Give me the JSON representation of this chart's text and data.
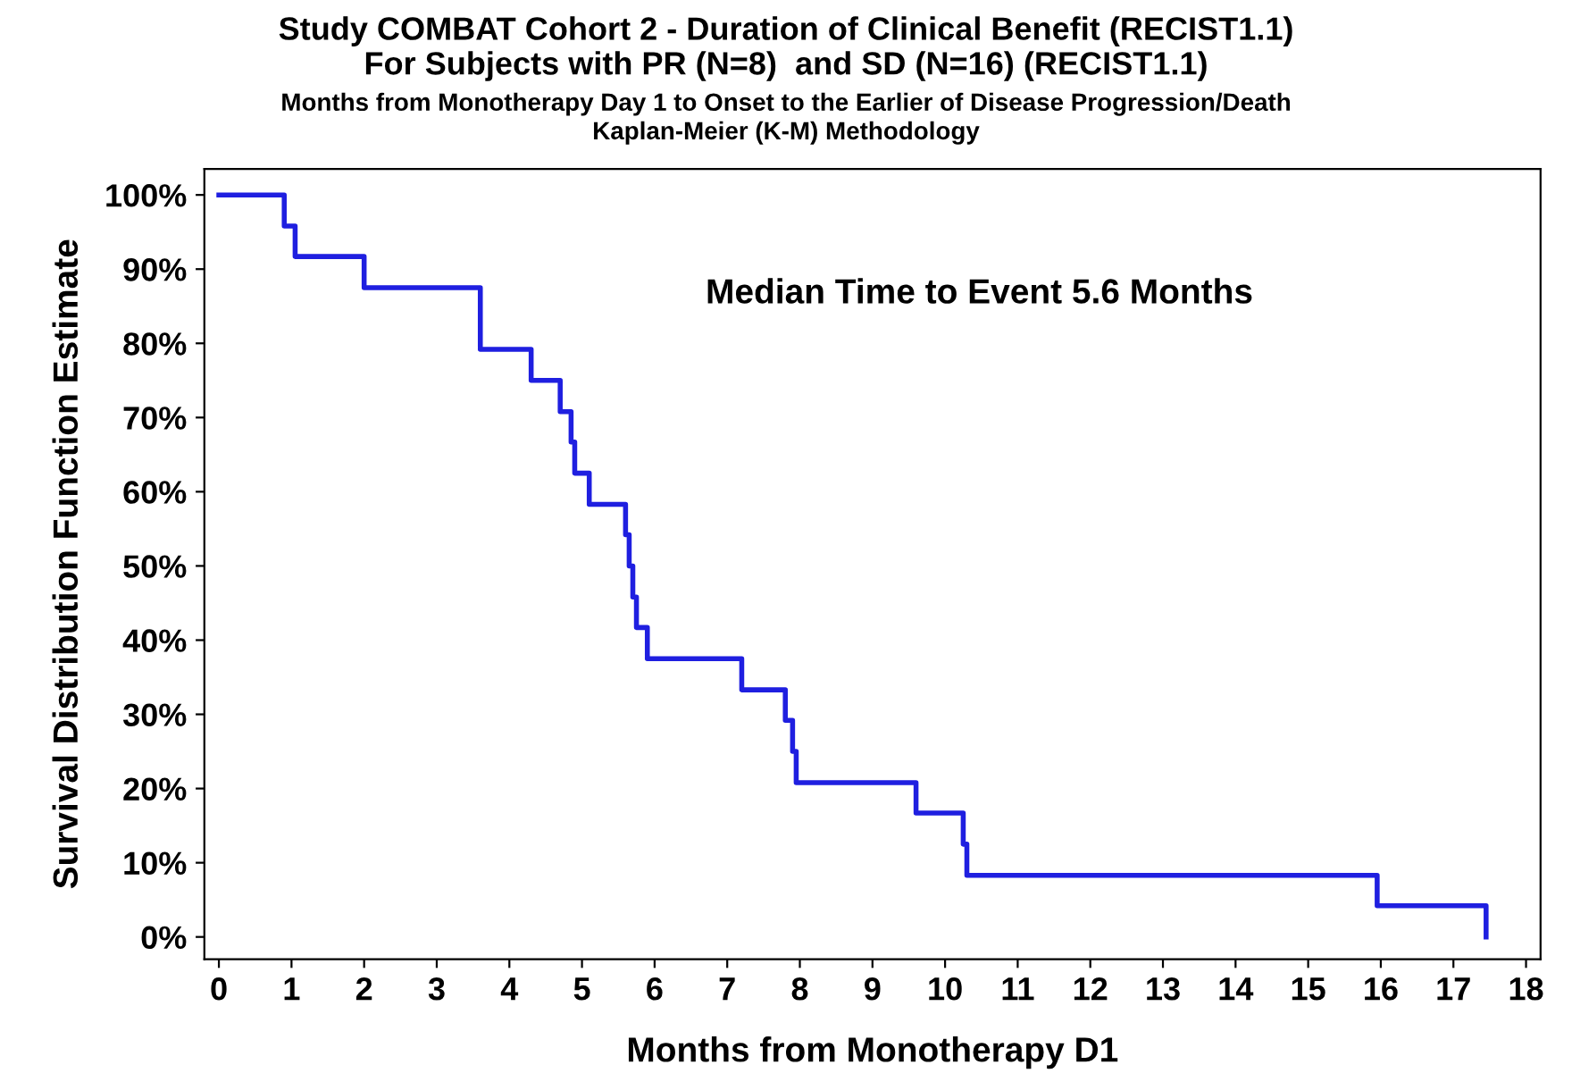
{
  "chart_data": {
    "type": "step",
    "title": "Study COMBAT Cohort 2 - Duration of Clinical Benefit (RECIST1.1)\nFor Subjects with PR (N=8)  and SD (N=16) (RECIST1.1)",
    "subtitle": "Months from Monotherapy Day 1 to Onset to the Earlier of Disease Progression/Death\nKaplan-Meier (K-M) Methodology",
    "xlabel": "Months from Monotherapy D1",
    "ylabel": "Survival Distribution Function Estimate",
    "annotations": [
      "Median Time to Event 5.6 Months"
    ],
    "series": [
      {
        "color": "#1f1fe0",
        "x": [
          0,
          0.9,
          1.05,
          2.0,
          3.6,
          4.3,
          4.7,
          4.85,
          4.9,
          5.1,
          5.6,
          5.65,
          5.7,
          5.75,
          5.9,
          7.2,
          7.8,
          7.9,
          7.95,
          9.6,
          10.25,
          10.3,
          15.95,
          17.45
        ],
        "values": [
          100,
          95.8,
          91.7,
          87.5,
          79.2,
          75.0,
          70.8,
          66.7,
          62.5,
          58.3,
          54.2,
          50.0,
          45.8,
          41.7,
          37.5,
          33.3,
          29.2,
          25.0,
          20.8,
          16.7,
          12.5,
          8.3,
          4.2,
          0
        ]
      }
    ],
    "xlim": [
      -0.2,
      18.2
    ],
    "ylim": [
      -3,
      103.5
    ],
    "xticks": [
      0,
      1,
      2,
      3,
      4,
      5,
      6,
      7,
      8,
      9,
      10,
      11,
      12,
      13,
      14,
      15,
      16,
      17,
      18
    ],
    "yticks": [
      {
        "value": 0,
        "label": "0%"
      },
      {
        "value": 10,
        "label": "10%"
      },
      {
        "value": 20,
        "label": "20%"
      },
      {
        "value": 30,
        "label": "30%"
      },
      {
        "value": 40,
        "label": "40%"
      },
      {
        "value": 50,
        "label": "50%"
      },
      {
        "value": 60,
        "label": "60%"
      },
      {
        "value": 70,
        "label": "70%"
      },
      {
        "value": 80,
        "label": "80%"
      },
      {
        "value": 90,
        "label": "90%"
      },
      {
        "value": 100,
        "label": "100%"
      }
    ],
    "grid": false,
    "legend": false
  }
}
